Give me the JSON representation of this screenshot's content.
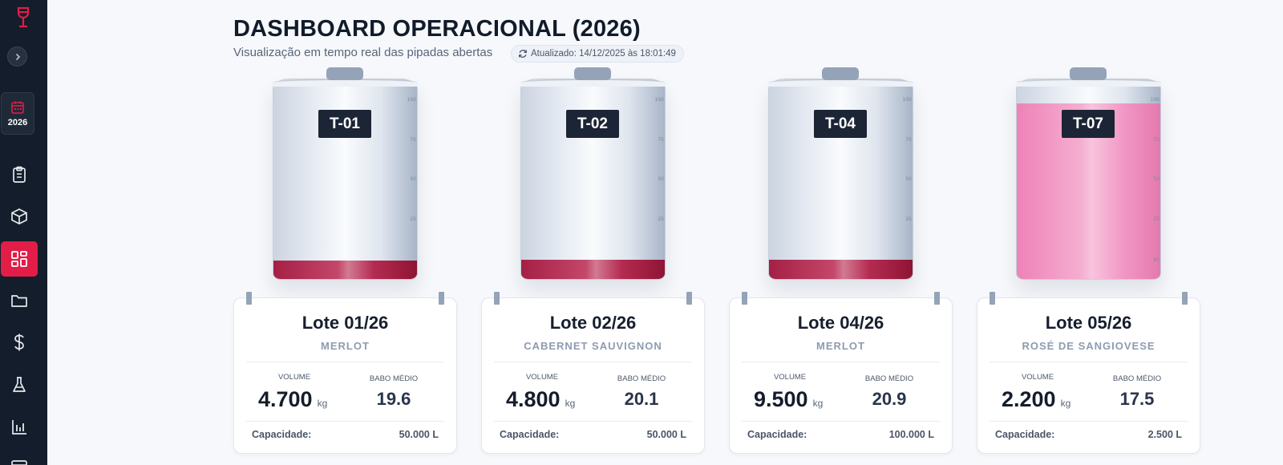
{
  "sidebar": {
    "year": "2026",
    "nav": [
      "clipboard-icon",
      "package-icon",
      "dashboard-icon",
      "folder-icon",
      "dollar-icon",
      "flask-icon",
      "bar-chart-icon"
    ],
    "active_index": 2,
    "accent": "#e11d48"
  },
  "header": {
    "title": "DASHBOARD OPERACIONAL (2026)",
    "subtitle": "Visualização em tempo real das pipadas abertas",
    "updated": "Atualizado: 14/12/2025 às 18:01:49"
  },
  "labels": {
    "volume": "VOLUME",
    "babo": "BABO MÉDIO",
    "capacity": "Capacidade:",
    "unit": "kg"
  },
  "tanks": [
    {
      "id": "T-01",
      "lot": "Lote 01/26",
      "variety": "MERLOT",
      "volume": "4.700",
      "babo": "19.6",
      "capacity": "50.000 L",
      "fill_fraction": 0.094,
      "liquid": "red",
      "ticks": [
        "100",
        "75",
        "50",
        "25"
      ]
    },
    {
      "id": "T-02",
      "lot": "Lote 02/26",
      "variety": "CABERNET SAUVIGNON",
      "volume": "4.800",
      "babo": "20.1",
      "capacity": "50.000 L",
      "fill_fraction": 0.096,
      "liquid": "red",
      "ticks": [
        "100",
        "75",
        "50",
        "25"
      ]
    },
    {
      "id": "T-04",
      "lot": "Lote 04/26",
      "variety": "MERLOT",
      "volume": "9.500",
      "babo": "20.9",
      "capacity": "100.000 L",
      "fill_fraction": 0.095,
      "liquid": "red",
      "ticks": [
        "100",
        "75",
        "50",
        "25"
      ]
    },
    {
      "id": "T-07",
      "lot": "Lote 05/26",
      "variety": "ROSÉ DE SANGIOVESE",
      "volume": "2.200",
      "babo": "17.5",
      "capacity": "2.500 L",
      "fill_fraction": 0.88,
      "liquid": "rose",
      "ticks": [
        "100",
        "75",
        "50",
        "25",
        "85"
      ]
    }
  ]
}
